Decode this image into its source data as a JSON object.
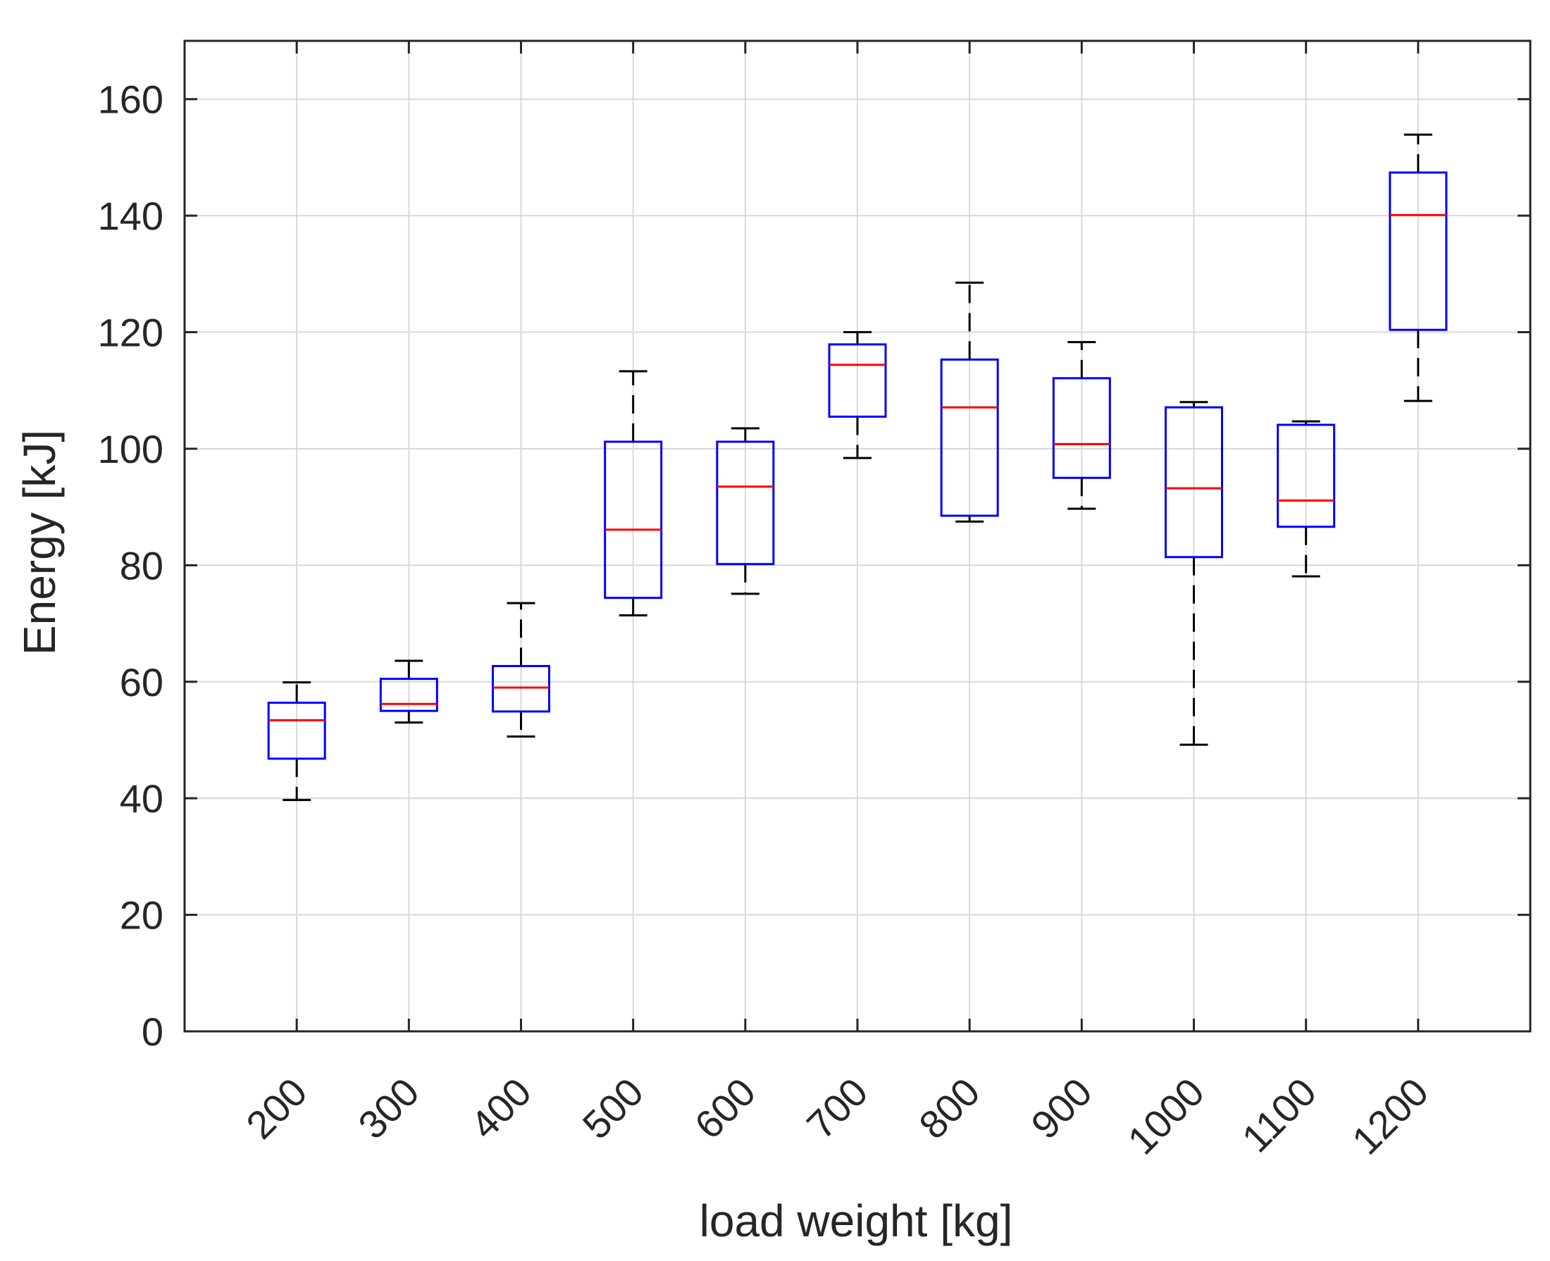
{
  "chart_data": {
    "type": "box",
    "title": "",
    "xlabel": "load weight [kg]",
    "ylabel": "Energy [kJ]",
    "ylim": [
      0,
      170
    ],
    "yticks": [
      0,
      20,
      40,
      60,
      80,
      100,
      120,
      140,
      160
    ],
    "grid": true,
    "categories": [
      "200",
      "300",
      "400",
      "500",
      "600",
      "700",
      "800",
      "900",
      "1000",
      "1100",
      "1200"
    ],
    "boxes": [
      {
        "category": "200",
        "whisker_low": 39.7,
        "q1": 46.8,
        "median": 53.4,
        "q3": 56.4,
        "whisker_high": 59.9
      },
      {
        "category": "300",
        "whisker_low": 53.0,
        "q1": 55.0,
        "median": 56.2,
        "q3": 60.5,
        "whisker_high": 63.6
      },
      {
        "category": "400",
        "whisker_low": 50.6,
        "q1": 54.9,
        "median": 59.0,
        "q3": 62.7,
        "whisker_high": 73.5
      },
      {
        "category": "500",
        "whisker_low": 71.4,
        "q1": 74.4,
        "median": 86.1,
        "q3": 101.2,
        "whisker_high": 113.3
      },
      {
        "category": "600",
        "whisker_low": 75.1,
        "q1": 80.2,
        "median": 93.5,
        "q3": 101.2,
        "whisker_high": 103.5
      },
      {
        "category": "700",
        "whisker_low": 98.4,
        "q1": 105.5,
        "median": 114.4,
        "q3": 117.9,
        "whisker_high": 120.0
      },
      {
        "category": "800",
        "whisker_low": 87.5,
        "q1": 88.5,
        "median": 107.1,
        "q3": 115.3,
        "whisker_high": 128.5
      },
      {
        "category": "900",
        "whisker_low": 89.7,
        "q1": 95.0,
        "median": 100.8,
        "q3": 112.1,
        "whisker_high": 118.3
      },
      {
        "category": "1000",
        "whisker_low": 49.2,
        "q1": 81.4,
        "median": 93.2,
        "q3": 107.1,
        "whisker_high": 108.0
      },
      {
        "category": "1100",
        "whisker_low": 78.1,
        "q1": 86.6,
        "median": 91.1,
        "q3": 104.1,
        "whisker_high": 104.7
      },
      {
        "category": "1200",
        "whisker_low": 108.2,
        "q1": 120.4,
        "median": 140.1,
        "q3": 147.4,
        "whisker_high": 153.9
      }
    ],
    "colors": {
      "box": "#0000ff",
      "median": "#ff0000",
      "whisker": "#000000",
      "grid": "#d9d9d9",
      "axis": "#262626"
    }
  }
}
